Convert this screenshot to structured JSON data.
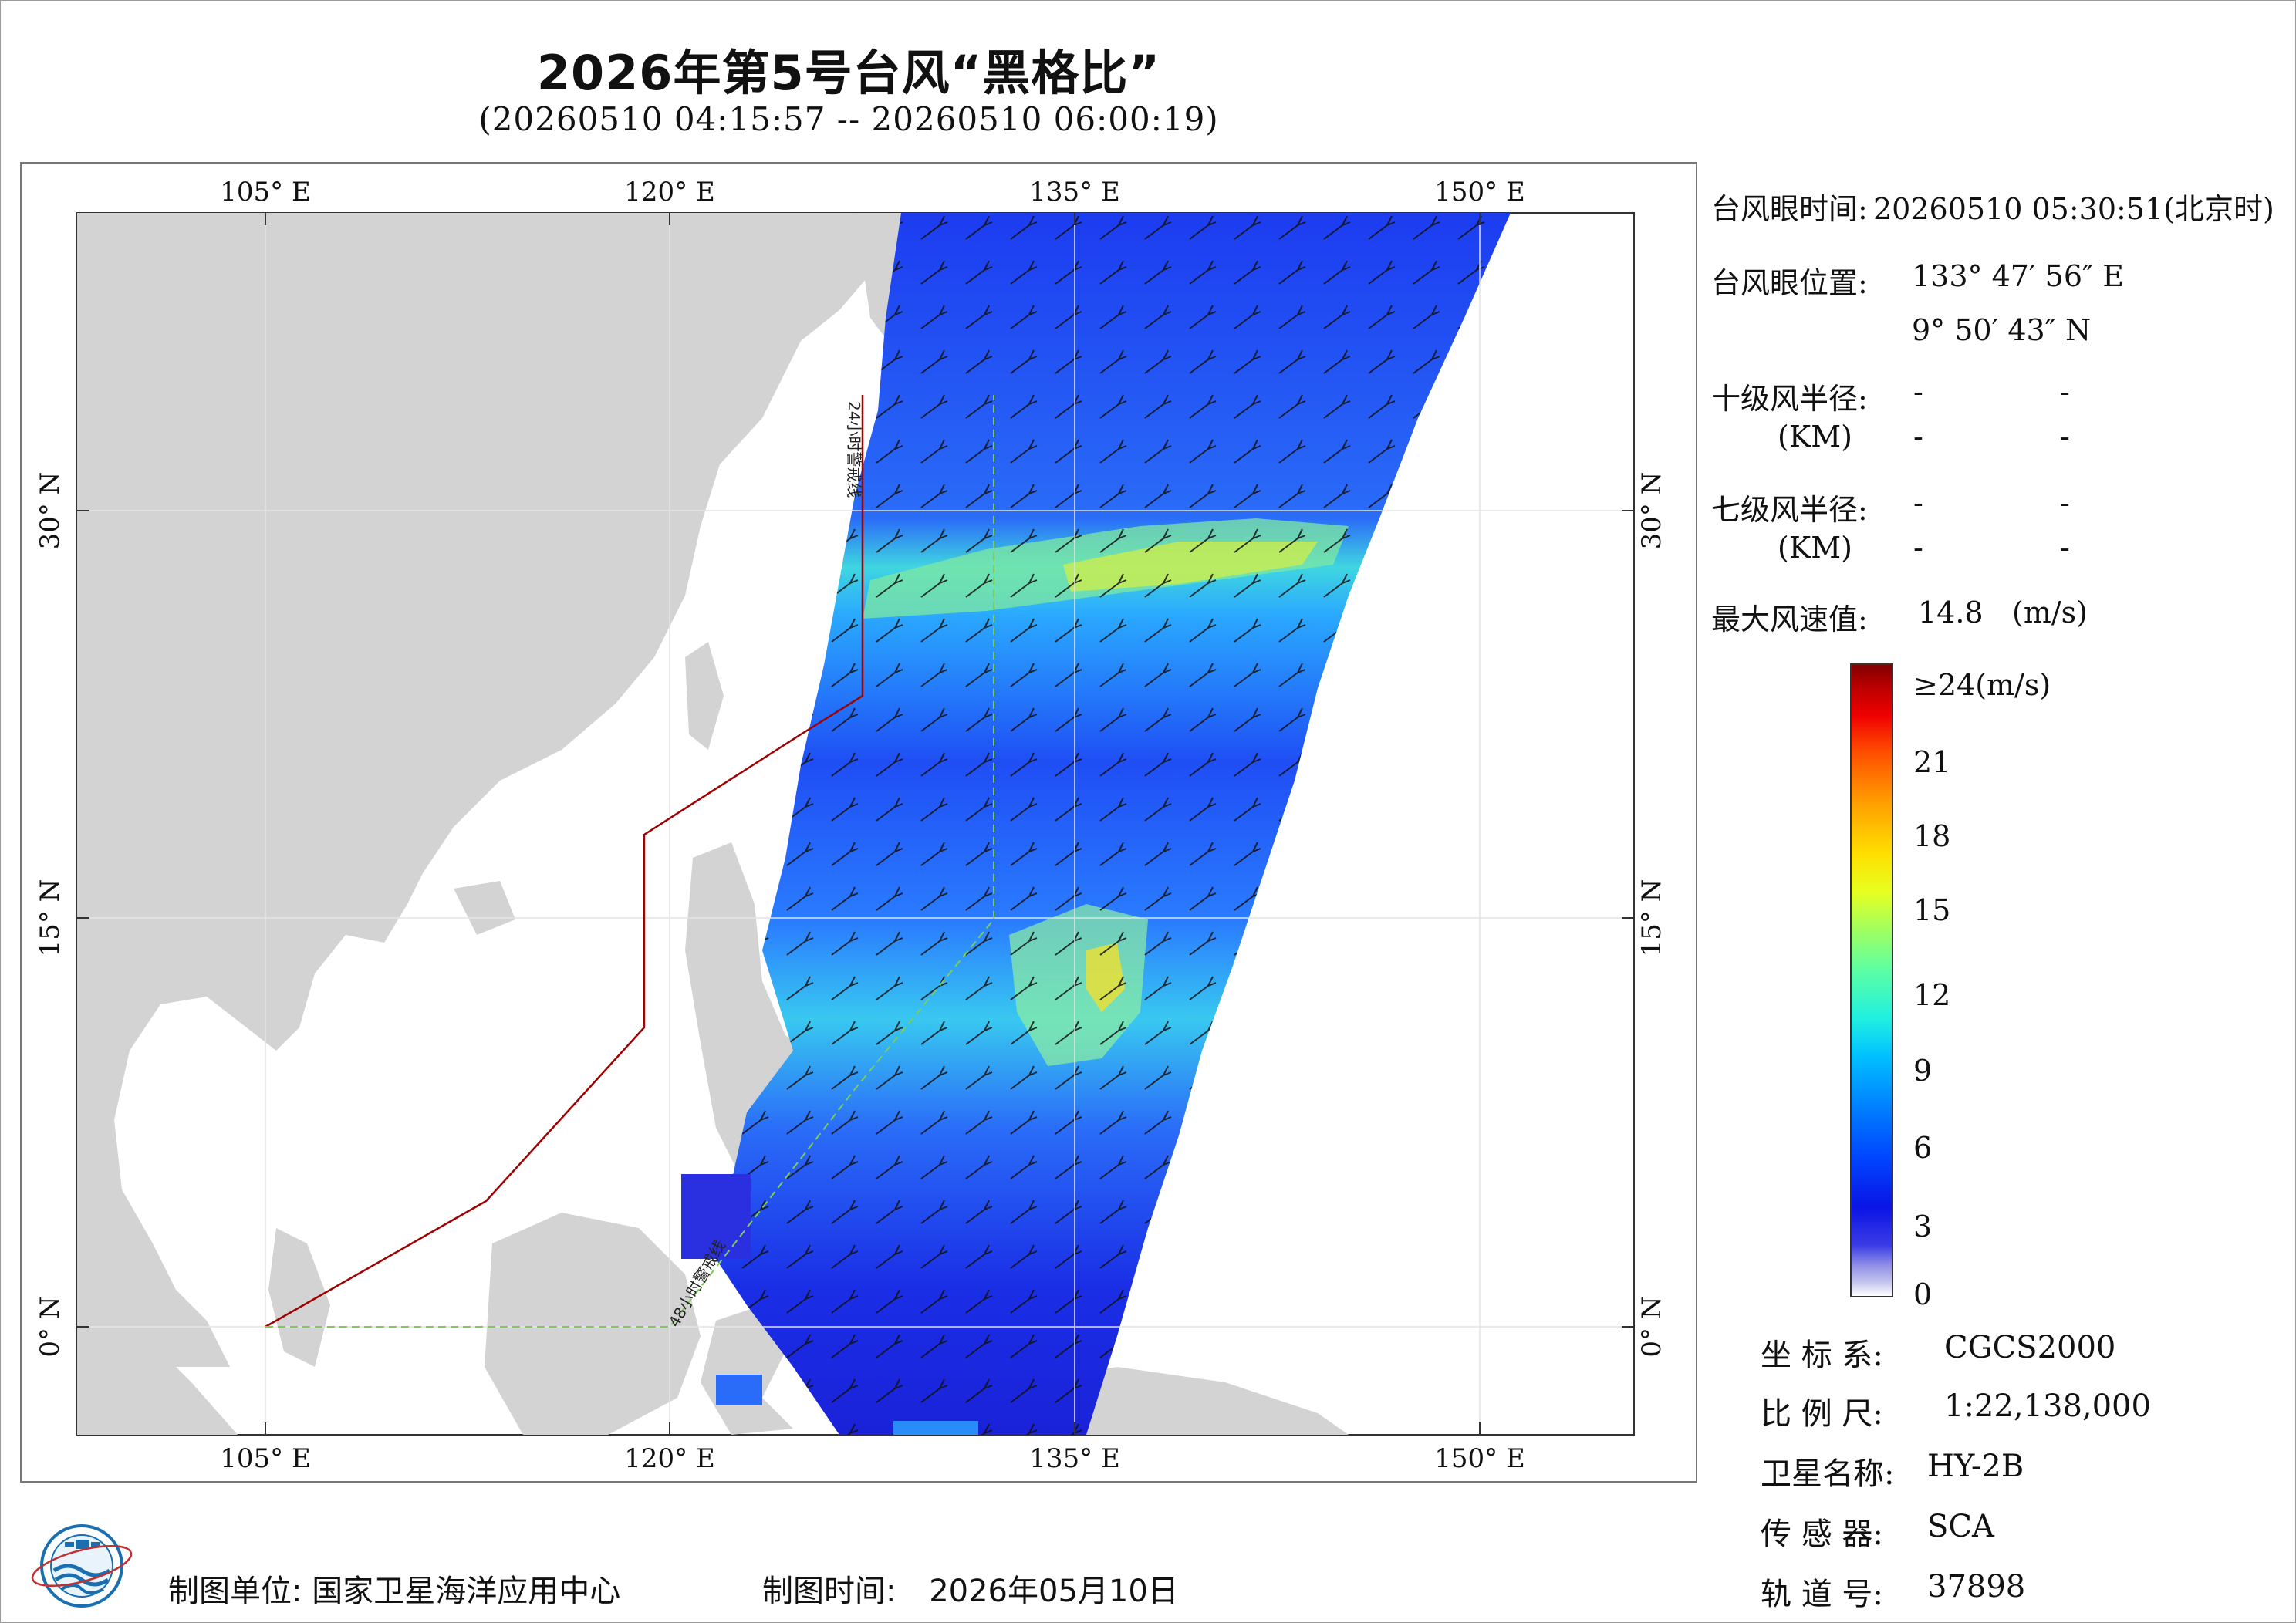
{
  "title": "2026年第5号台风“黑格比”",
  "subtitle": "(20260510 04:15:57 -- 20260510 06:00:19)",
  "map": {
    "top_lon_labels": [
      "105° E",
      "120° E",
      "135° E",
      "150° E"
    ],
    "bottom_lon_labels": [
      "105° E",
      "120° E",
      "135° E",
      "150° E"
    ],
    "left_lat_labels": [
      "30° N",
      "15° N",
      "0° N"
    ],
    "right_lat_labels": [
      "30° N",
      "15° N",
      "0° N"
    ],
    "line_label_24h": "24小时警戒线",
    "line_label_48h": "48小时警戒线",
    "land_color": "#d3d3d3",
    "sea_color": "#ffffff",
    "boundary_color": "#a00000",
    "guide_color": "#7ccc5a"
  },
  "info": {
    "eye_time_key": "台风眼时间:",
    "eye_time_val": "20260510 05:30:51(北京时)",
    "eye_pos_key": "台风眼位置:",
    "eye_lon": "133° 47′ 56″ E",
    "eye_lat": "9° 50′ 43″ N",
    "r10_key": "十级风半径:",
    "r10_unit": "(KM)",
    "r10_v1": "-",
    "r10_v2": "-",
    "r10_v3": "-",
    "r10_v4": "-",
    "r7_key": "七级风半径:",
    "r7_unit": "(KM)",
    "r7_v1": "-",
    "r7_v2": "-",
    "r7_v3": "-",
    "r7_v4": "-",
    "max_wind_key": "最大风速值:",
    "max_wind_val": "14.8",
    "max_wind_unit": "(m/s)"
  },
  "colorbar": {
    "labels": [
      "≥24(m/s)",
      "21",
      "18",
      "15",
      "12",
      "9",
      "6",
      "3",
      "0"
    ]
  },
  "meta": {
    "crs_key": "坐 标 系:",
    "crs_val": "CGCS2000",
    "scale_key": "比 例 尺:",
    "scale_val": "1:22,138,000",
    "sat_key": "卫星名称:",
    "sat_val": "HY-2B",
    "sensor_key": "传 感 器:",
    "sensor_val": "SCA",
    "orbit_key": "轨 道 号:",
    "orbit_val": "37898"
  },
  "footer": {
    "unit_key": "制图单位:",
    "unit_val": "国家卫星海洋应用中心",
    "time_key": "制图时间:",
    "time_val": "2026年05月10日"
  }
}
